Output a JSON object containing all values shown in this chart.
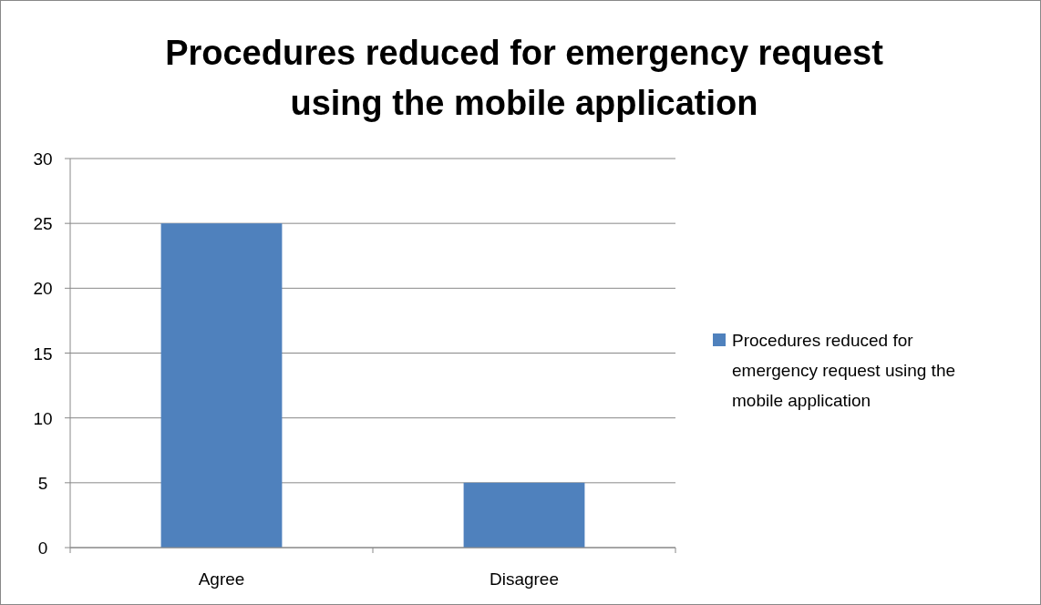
{
  "chart_data": {
    "type": "bar",
    "title": "Procedures reduced for emergency request using the mobile application",
    "categories": [
      "Agree",
      "Disagree"
    ],
    "series": [
      {
        "name": "Procedures reduced for emergency request using the mobile application",
        "color": "#4f81bd",
        "values": [
          25,
          5
        ]
      }
    ],
    "ylim": [
      0,
      30
    ],
    "yticks": [
      0,
      5,
      10,
      15,
      20,
      25,
      30
    ],
    "grid": "y",
    "legend": "right"
  }
}
